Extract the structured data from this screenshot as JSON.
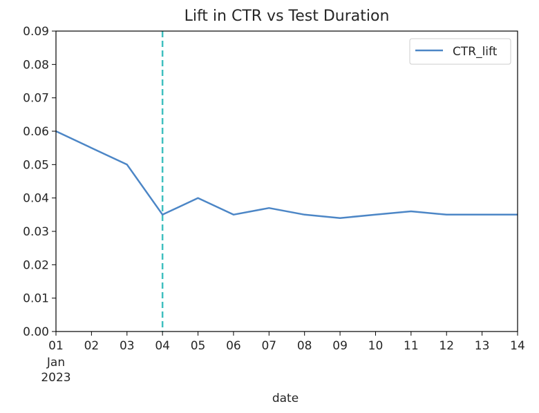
{
  "chart_data": {
    "type": "line",
    "title": "Lift in CTR vs Test Duration",
    "xlabel": "date",
    "ylabel": "",
    "x": [
      "2023-01-01",
      "2023-01-02",
      "2023-01-03",
      "2023-01-04",
      "2023-01-05",
      "2023-01-06",
      "2023-01-07",
      "2023-01-08",
      "2023-01-09",
      "2023-01-10",
      "2023-01-11",
      "2023-01-12",
      "2023-01-13",
      "2023-01-14"
    ],
    "x_tick_labels": [
      "01",
      "02",
      "03",
      "04",
      "05",
      "06",
      "07",
      "08",
      "09",
      "10",
      "11",
      "12",
      "13",
      "14"
    ],
    "x_tick_sublabels": [
      "Jan",
      "2023"
    ],
    "series": [
      {
        "name": "CTR_lift",
        "color": "#4c86c6",
        "values": [
          0.06,
          0.055,
          0.05,
          0.035,
          0.04,
          0.035,
          0.037,
          0.035,
          0.034,
          0.035,
          0.036,
          0.035,
          0.035,
          0.035
        ]
      }
    ],
    "ylim": [
      0,
      0.09
    ],
    "y_ticks": [
      "0.00",
      "0.01",
      "0.02",
      "0.03",
      "0.04",
      "0.05",
      "0.06",
      "0.07",
      "0.08",
      "0.09"
    ],
    "vline": {
      "x": "2023-01-04",
      "color": "#3fbfbf",
      "style": "dashed"
    },
    "legend": {
      "position": "top-right",
      "entries": [
        "CTR_lift"
      ]
    },
    "grid": false
  }
}
